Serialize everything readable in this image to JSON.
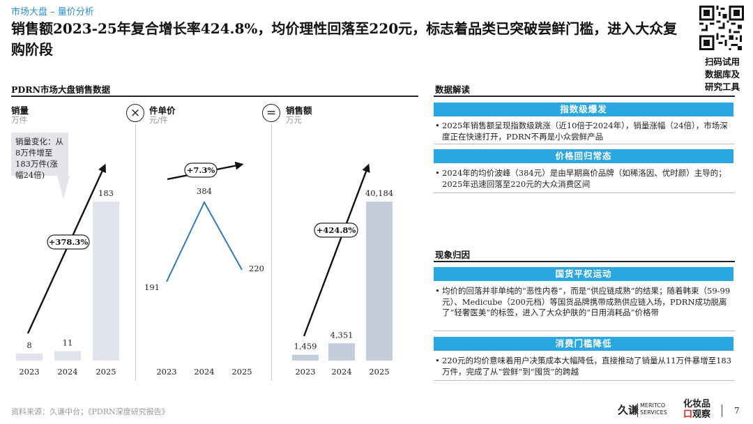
{
  "header": {
    "breadcrumb": "市场大盘 – 量价分析",
    "title": "销售额2023-25年复合增长率424.8%，均价理性回落至220元，标志着品类已突破尝鲜门槛，进入大众复购阶段"
  },
  "qr": {
    "caption_lines": [
      "扫码试用",
      "数据库及",
      "研究工具"
    ]
  },
  "left_section": {
    "title": "PDRN市场大盘销售数据"
  },
  "operators": {
    "times": "×",
    "equals": "="
  },
  "callout": {
    "text": "销量变化：从8万件增至183万件(涨幅24倍)"
  },
  "colors": {
    "bar_light": "#e1e4ec",
    "bar_dark": "#c4cddc",
    "line": "#2e79b9",
    "banner": "#2aa7e0",
    "arrow": "#111111"
  },
  "chart_data": [
    {
      "type": "bar",
      "title": "销量",
      "unit": "万件",
      "categories": [
        "2023",
        "2024",
        "2025"
      ],
      "values": [
        8,
        11,
        183
      ],
      "value_labels": [
        "8",
        "11",
        "183"
      ],
      "growth_label": "+378.3%"
    },
    {
      "type": "line",
      "title": "件单价",
      "unit": "元/件",
      "categories": [
        "2023",
        "2024",
        "2025"
      ],
      "values": [
        191,
        384,
        220
      ],
      "value_labels": [
        "191",
        "384",
        "220"
      ],
      "growth_label": "+7.3%"
    },
    {
      "type": "bar",
      "title": "销售额",
      "unit": "万元",
      "categories": [
        "2023",
        "2024",
        "2025"
      ],
      "values": [
        1459,
        4351,
        40184
      ],
      "value_labels": [
        "1,459",
        "4,351",
        "40,184"
      ],
      "growth_label": "+424.8%"
    }
  ],
  "right_panel": {
    "section1_title": "数据解读",
    "section2_title": "现象归因",
    "blocks": [
      {
        "banner": "指数级爆发",
        "text": "2025年销售额呈现指数级跳涨（近10倍于2024年），销量涨幅（24倍），市场深度正在快速打开，PDRN不再是小众尝鲜产品"
      },
      {
        "banner": "价格回归常态",
        "text": "2024年的均价波峰（384元）是由早期高价品牌（如稀洛因、优时颜）主导的；2025年迅速回落至220元的大众消费区间"
      },
      {
        "banner": "国货平权运动",
        "text": "均价的回落并非单纯的“恶性内卷”，而是“供应链成熟”的结果；随着韩束（59-99元）、Medicube（200元档）等国货品牌携带成熟供应链入场，PDRN成功脱离了“轻奢医美”的标签，进入了大众护肤的“日用消耗品”价格带"
      },
      {
        "banner": "消费门槛降低",
        "text": "220元的均价意味着用户决策成本大幅降低，直接推动了销量从11万件暴增至183万件，完成了从“尝鲜”到“囤货”的跨越"
      }
    ]
  },
  "footer": {
    "source": "资料来源：久谦中台；《PDRN深度研究报告》",
    "logo1_main": "久谦",
    "logo1_sub_lines": [
      "MERITCO",
      "SERVICES"
    ],
    "logo2_lines": [
      "化妆品",
      "观察"
    ],
    "logo2_accent": "口",
    "page_number": "7"
  }
}
